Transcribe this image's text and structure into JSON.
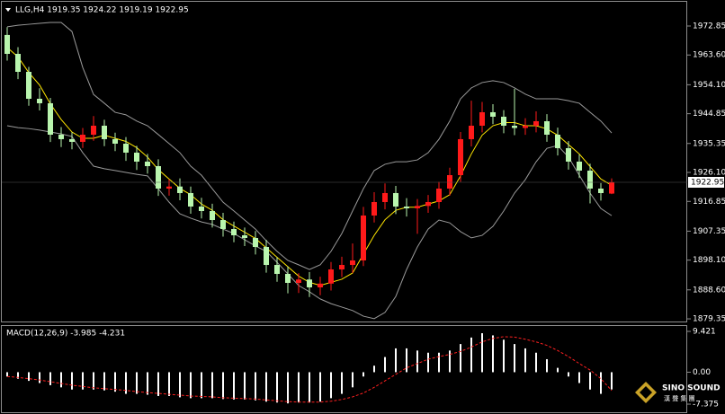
{
  "chart_data": [
    {
      "type": "candlestick",
      "title": "LLG,H4  1919.35 1924.22 1919.19 1922.95",
      "ylim": [
        1878.5,
        1980.3
      ],
      "yticks": [
        1972.85,
        {
          "value": 1963.6,
          "label": "1963.60"
        },
        {
          "value": 1954.1,
          "label": "1954.10"
        },
        1944.85,
        1935.35,
        {
          "value": 1926.1,
          "label": "1926.10"
        },
        1916.85,
        1907.35,
        {
          "value": 1898.1,
          "label": "1898.10"
        },
        {
          "value": 1888.6,
          "label": "1888.60"
        },
        1879.35
      ],
      "grid": false,
      "last_price": 1922.95,
      "up_color": "#ff1a1a",
      "down_color": "#b9f5ae",
      "open": [
        1970.0,
        1963.96,
        1958.22,
        1949.62,
        1948.19,
        1938.15,
        1936.72,
        1935.86,
        1938.15,
        1941.02,
        1936.72,
        1935.28,
        1932.42,
        1929.55,
        1928.11,
        1920.94,
        1921.6,
        1919.51,
        1915.21,
        1913.77,
        1910.9,
        1908.04,
        1906.03,
        1905.17,
        1902.3,
        1896.56,
        1893.7,
        1890.83,
        1891.9,
        1889.4,
        1890.6,
        1895.13,
        1896.56,
        1898.0,
        1912.34,
        1916.64,
        1919.51,
        1915.21,
        1914.64,
        1915.4,
        1916.64,
        1920.94,
        1925.24,
        1936.72,
        1941.02,
        1945.32,
        1943.89,
        1941.02,
        1940.3,
        1941.02,
        1942.45,
        1938.15,
        1933.85,
        1929.55,
        1926.68,
        1920.94,
        1919.35
      ],
      "high": [
        1972.5,
        1966.1,
        1959.8,
        1953.0,
        1949.9,
        1940.6,
        1938.9,
        1940.3,
        1944.1,
        1942.9,
        1938.8,
        1937.4,
        1934.6,
        1932.0,
        1930.3,
        1923.9,
        1924.2,
        1921.6,
        1918.0,
        1916.1,
        1913.2,
        1910.4,
        1908.5,
        1907.4,
        1904.6,
        1899.0,
        1896.1,
        1893.9,
        1894.3,
        1892.8,
        1897.5,
        1899.2,
        1903.4,
        1915.1,
        1919.8,
        1922.6,
        1921.8,
        1917.9,
        1917.6,
        1918.9,
        1923.1,
        1927.6,
        1939.0,
        1949.0,
        1948.6,
        1947.9,
        1946.0,
        1952.8,
        1943.4,
        1945.6,
        1944.7,
        1940.4,
        1936.1,
        1931.8,
        1928.9,
        1922.7,
        1924.22
      ],
      "low": [
        1961.8,
        1955.9,
        1947.4,
        1945.9,
        1935.8,
        1934.2,
        1933.5,
        1933.9,
        1936.2,
        1934.5,
        1932.9,
        1929.8,
        1926.9,
        1925.7,
        1918.6,
        1918.7,
        1917.2,
        1912.9,
        1911.4,
        1908.5,
        1905.6,
        1903.8,
        1902.6,
        1899.9,
        1894.1,
        1891.2,
        1887.5,
        1887.6,
        1886.3,
        1886.9,
        1888.4,
        1892.7,
        1894.0,
        1896.2,
        1910.1,
        1914.3,
        1912.8,
        1912.0,
        1906.5,
        1913.2,
        1914.5,
        1918.7,
        1923.1,
        1934.4,
        1938.9,
        1941.5,
        1938.6,
        1938.0,
        1938.1,
        1938.9,
        1935.9,
        1931.5,
        1927.0,
        1924.3,
        1916.2,
        1917.1,
        1919.19
      ],
      "close": [
        1963.96,
        1958.22,
        1949.62,
        1948.19,
        1938.15,
        1936.72,
        1935.86,
        1938.15,
        1941.02,
        1936.72,
        1935.28,
        1932.42,
        1929.55,
        1928.11,
        1920.94,
        1921.6,
        1919.51,
        1915.21,
        1913.77,
        1910.9,
        1908.04,
        1906.03,
        1905.17,
        1902.3,
        1896.56,
        1893.7,
        1890.83,
        1891.9,
        1889.4,
        1890.6,
        1895.13,
        1896.56,
        1898.0,
        1912.34,
        1916.64,
        1919.51,
        1915.21,
        1914.64,
        1915.4,
        1916.64,
        1920.94,
        1925.24,
        1936.72,
        1941.02,
        1945.32,
        1943.89,
        1941.02,
        1940.3,
        1941.02,
        1942.45,
        1938.15,
        1933.85,
        1929.55,
        1926.68,
        1920.94,
        1919.51,
        1922.95
      ],
      "overlays": [
        {
          "color": "#ffe600",
          "values": [
            1966,
            1963,
            1958,
            1954,
            1948,
            1943,
            1939,
            1937,
            1937,
            1938,
            1937,
            1936,
            1934,
            1931,
            1927,
            1924,
            1921,
            1919,
            1916,
            1914,
            1911,
            1909,
            1907,
            1905,
            1902,
            1899,
            1896,
            1893,
            1891,
            1890,
            1891,
            1892,
            1894,
            1900,
            1906,
            1911,
            1914,
            1915,
            1915,
            1916,
            1917,
            1919,
            1925,
            1932,
            1938,
            1941,
            1942,
            1942,
            1941,
            1941,
            1940,
            1938,
            1935,
            1932,
            1928,
            1924,
            1922
          ]
        },
        {
          "color": "#9a9a9a",
          "values": [
            1972.6,
            1973.1,
            1973.4,
            1973.7,
            1974.0,
            1974.0,
            1971.1,
            1959.6,
            1951.0,
            1948.2,
            1945.3,
            1944.5,
            1942.5,
            1941.0,
            1938.2,
            1935.3,
            1932.4,
            1928.1,
            1925.2,
            1920.9,
            1916.6,
            1913.8,
            1910.9,
            1908.0,
            1904.3,
            1900.9,
            1898.0,
            1896.6,
            1895.1,
            1896.6,
            1900.9,
            1906.6,
            1913.8,
            1920.9,
            1926.7,
            1928.7,
            1929.5,
            1929.5,
            1930.1,
            1932.4,
            1936.7,
            1942.5,
            1949.6,
            1953.1,
            1954.8,
            1955.4,
            1954.8,
            1953.1,
            1951.1,
            1949.6,
            1949.6,
            1949.6,
            1949.0,
            1948.2,
            1945.3,
            1942.5,
            1938.7
          ]
        },
        {
          "color": "#9a9a9a",
          "values": [
            1941.0,
            1940.4,
            1940.1,
            1939.6,
            1939.0,
            1938.4,
            1937.6,
            1932.4,
            1928.1,
            1927.3,
            1926.7,
            1926.1,
            1925.5,
            1925.0,
            1920.9,
            1916.6,
            1912.9,
            1911.5,
            1910.3,
            1909.5,
            1908.0,
            1906.6,
            1904.6,
            1902.6,
            1900.9,
            1897.4,
            1893.7,
            1890.0,
            1888.0,
            1885.7,
            1884.2,
            1883.1,
            1882.0,
            1880.2,
            1879.4,
            1881.4,
            1886.5,
            1895.1,
            1902.3,
            1908.0,
            1910.9,
            1910.0,
            1907.2,
            1905.2,
            1906.0,
            1908.9,
            1913.8,
            1919.5,
            1923.8,
            1929.5,
            1933.8,
            1934.7,
            1931.0,
            1925.2,
            1919.5,
            1914.6,
            1912.3
          ]
        }
      ]
    },
    {
      "type": "macd",
      "title": "MACD(12,26,9) -3.985 -4.231",
      "ylim": [
        -9.03,
        10.46
      ],
      "yticks": [
        9.421,
        {
          "value": 0,
          "label": "0.00"
        },
        -7.375
      ],
      "grid": false,
      "hist_color": "#ffffff",
      "signal_color": "#ff2020",
      "values": [
        -1,
        -1.5,
        -2,
        -2.5,
        -3,
        -3.5,
        -4,
        -4,
        -4,
        -4.2,
        -4.5,
        -5,
        -5,
        -5.2,
        -5.5,
        -5.5,
        -5.8,
        -6,
        -6,
        -6,
        -6.2,
        -6.3,
        -6.3,
        -6.5,
        -6.8,
        -7,
        -7.2,
        -7,
        -7,
        -6.8,
        -6,
        -5,
        -3.5,
        -1,
        1.5,
        3.5,
        5.5,
        5.5,
        5,
        4.5,
        4.5,
        5,
        6.5,
        8,
        9,
        8.5,
        7.5,
        6.5,
        5.5,
        4.5,
        3,
        1,
        -1,
        -2.5,
        -4,
        -5,
        -3.985
      ],
      "signal": [
        -1,
        -1.2,
        -1.5,
        -1.8,
        -2.2,
        -2.6,
        -3,
        -3.3,
        -3.6,
        -3.8,
        -4,
        -4.2,
        -4.5,
        -4.7,
        -4.9,
        -5.1,
        -5.3,
        -5.5,
        -5.6,
        -5.7,
        -5.9,
        -6,
        -6.1,
        -6.2,
        -6.4,
        -6.6,
        -6.8,
        -6.9,
        -6.9,
        -6.9,
        -6.7,
        -6.3,
        -5.7,
        -4.8,
        -3.5,
        -2,
        -0.5,
        1,
        2,
        3,
        3.6,
        4.1,
        4.8,
        5.8,
        7,
        7.8,
        8.2,
        8.1,
        7.6,
        7,
        6.2,
        5,
        3.6,
        2,
        0.5,
        -1.5,
        -4.231
      ]
    }
  ],
  "logo": {
    "name": "SINO SOUND",
    "sub": "漢 聲 集 團"
  }
}
